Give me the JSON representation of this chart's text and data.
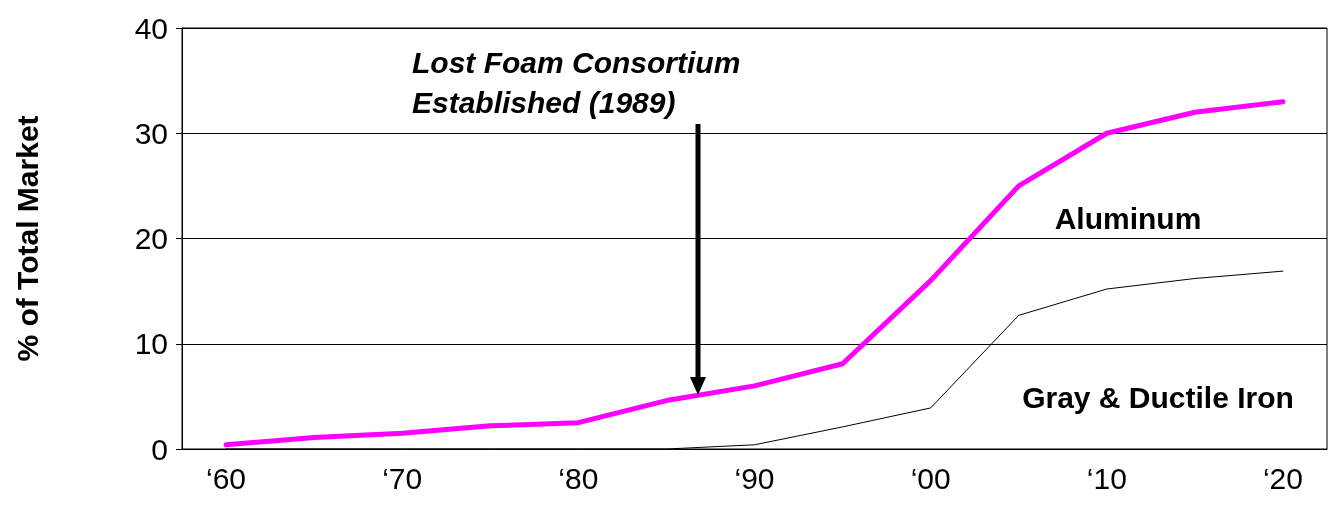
{
  "chart_data": {
    "type": "line",
    "ylabel": "% of Total Market",
    "categories": [
      "‘60",
      null,
      "‘70",
      null,
      "‘80",
      null,
      "‘90",
      null,
      "‘00",
      null,
      "‘10",
      null,
      "‘20"
    ],
    "series": [
      {
        "name": "Aluminum",
        "color": "#ff00ff",
        "values": [
          0.4,
          1.1,
          1.5,
          2.2,
          2.5,
          4.6,
          6,
          8.1,
          16,
          25,
          30,
          32,
          33
        ]
      },
      {
        "name": "Gray & Ductile Iron",
        "color": "#000000",
        "values": [
          0,
          0,
          0,
          0,
          0,
          0,
          0.4,
          2.1,
          3.9,
          12.7,
          15.2,
          16.2,
          16.9
        ]
      }
    ],
    "ylim": [
      0,
      40
    ],
    "yticks": [
      0,
      10,
      20,
      30,
      40
    ],
    "grid": "y",
    "legend": false,
    "marker": "none",
    "line_style": "solid",
    "annotations": [
      "Lost Foam Consortium\nEstablished (1989)"
    ]
  }
}
